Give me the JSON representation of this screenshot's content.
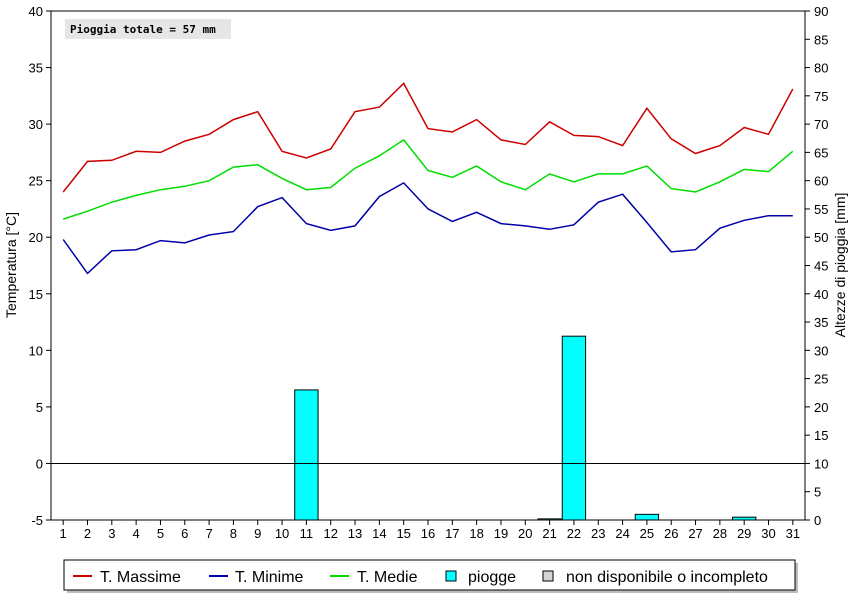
{
  "chart_data": {
    "type": "line",
    "annotation": "Pioggia totale = 57 mm",
    "y_left": {
      "label": "Temperatura [°C]",
      "min": -5,
      "max": 40,
      "step": 5
    },
    "y_right": {
      "label": "Altezze di pioggia [mm]",
      "min": 0,
      "max": 90,
      "step": 5
    },
    "x": [
      1,
      2,
      3,
      4,
      5,
      6,
      7,
      8,
      9,
      10,
      11,
      12,
      13,
      14,
      15,
      16,
      17,
      18,
      19,
      20,
      21,
      22,
      23,
      24,
      25,
      26,
      27,
      28,
      29,
      30,
      31
    ],
    "series": [
      {
        "name": "T. Massime",
        "color": "#cc0000",
        "values": [
          24.0,
          26.7,
          26.8,
          27.6,
          27.5,
          28.5,
          29.1,
          30.4,
          31.1,
          27.6,
          27.0,
          27.8,
          31.1,
          31.5,
          33.6,
          29.6,
          29.3,
          30.4,
          28.6,
          28.2,
          30.2,
          29.0,
          28.9,
          28.1,
          31.4,
          28.7,
          27.4,
          28.1,
          29.7,
          29.1,
          33.1
        ]
      },
      {
        "name": "T. Minime",
        "color": "#0000aa",
        "values": [
          19.8,
          16.8,
          18.8,
          18.9,
          19.7,
          19.5,
          20.2,
          20.5,
          22.7,
          23.5,
          21.2,
          20.6,
          21.0,
          23.6,
          24.8,
          22.5,
          21.4,
          22.2,
          21.2,
          21.0,
          20.7,
          21.1,
          23.1,
          23.8,
          21.3,
          18.7,
          18.9,
          20.8,
          21.5,
          21.9,
          21.9
        ]
      },
      {
        "name": "T. Medie",
        "color": "#00dd00",
        "values": [
          21.6,
          22.3,
          23.1,
          23.7,
          24.2,
          24.5,
          25.0,
          26.2,
          26.4,
          25.2,
          24.2,
          24.4,
          26.1,
          27.2,
          28.6,
          25.9,
          25.3,
          26.3,
          24.9,
          24.2,
          25.6,
          24.9,
          25.6,
          25.6,
          26.3,
          24.3,
          24.0,
          24.9,
          26.0,
          25.8,
          27.6
        ]
      }
    ],
    "bars": {
      "name": "piogge",
      "color": "#00ffff",
      "axis": "right",
      "values": [
        0,
        0,
        0,
        0,
        0,
        0,
        0,
        0,
        0,
        0,
        23,
        0,
        0,
        0,
        0,
        0,
        0,
        0,
        0,
        0,
        0.2,
        32.5,
        0,
        0,
        1,
        0,
        0,
        0,
        0.5,
        0,
        0
      ]
    },
    "legend_extra": {
      "name": "non disponibile o incompleto",
      "color": "#d4d4d4"
    },
    "legend_position": "bottom",
    "grid": false
  }
}
